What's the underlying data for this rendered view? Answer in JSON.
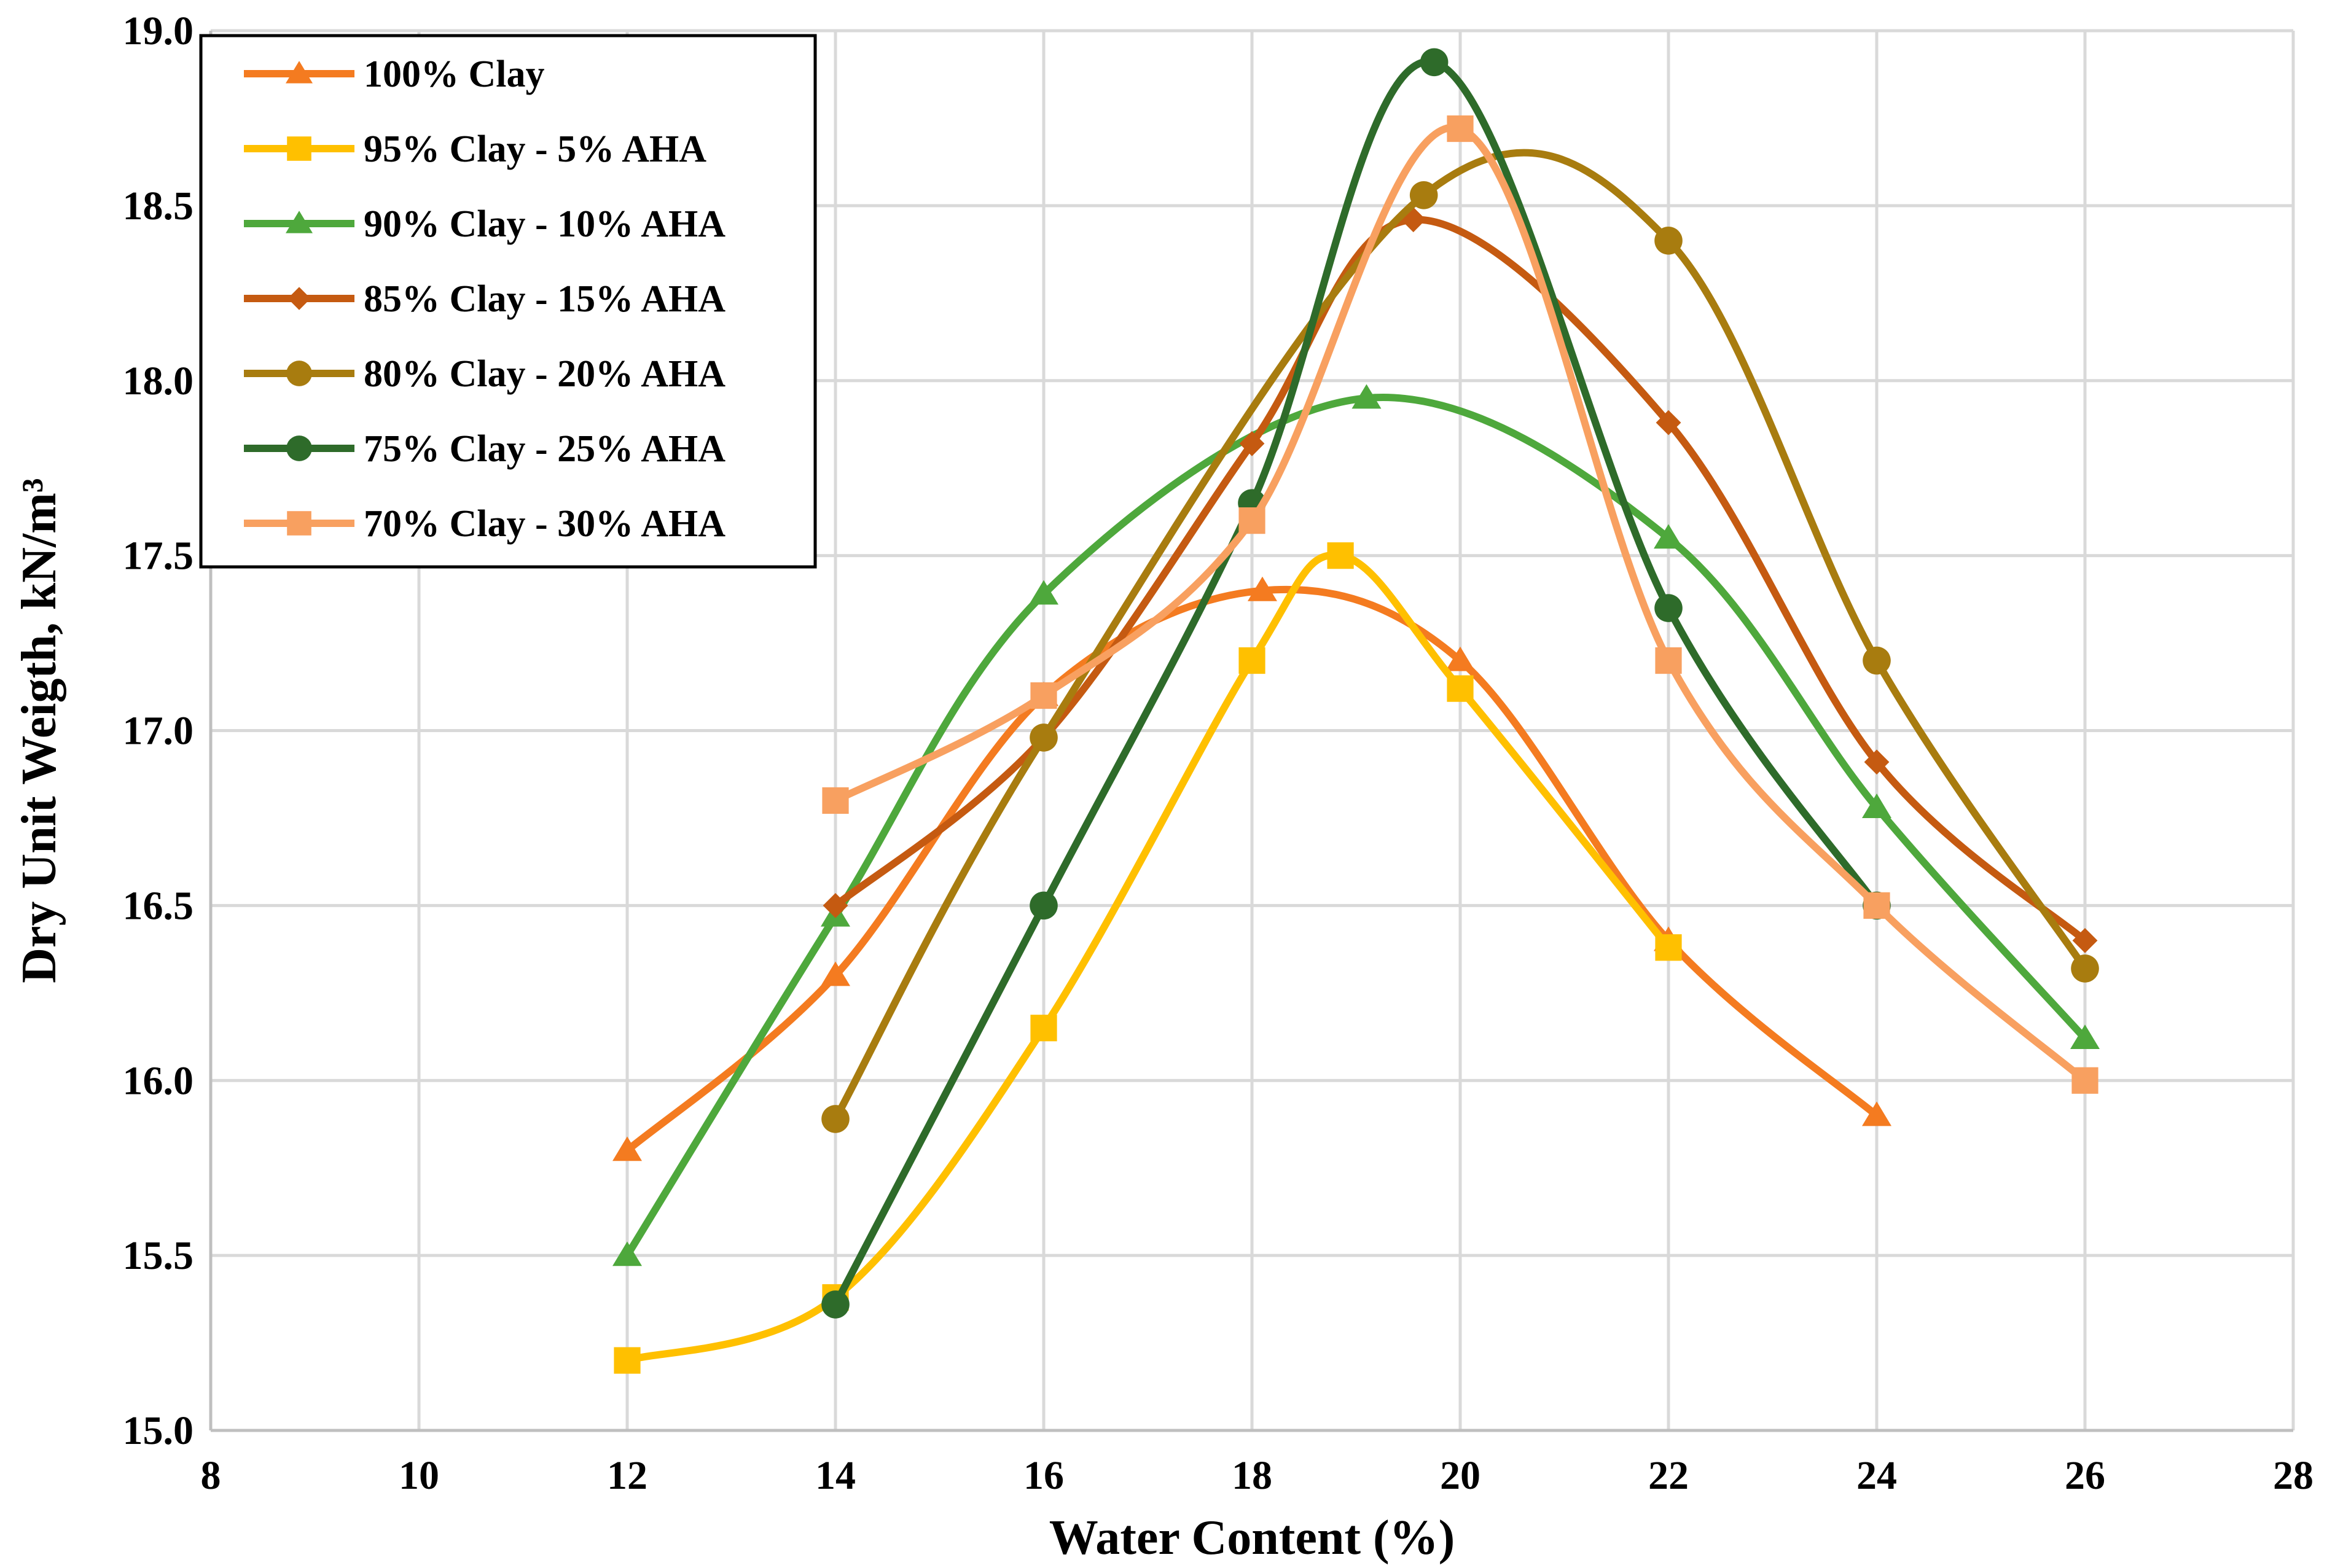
{
  "chart_data": {
    "type": "line",
    "smooth": true,
    "xlabel": "Water Content (%)",
    "ylabel": "Dry Unit Weigth, kN/m³",
    "xlim": [
      8,
      28
    ],
    "ylim": [
      15.0,
      19.0
    ],
    "xticks": [
      "8",
      "10",
      "12",
      "14",
      "16",
      "18",
      "20",
      "22",
      "24",
      "26",
      "28"
    ],
    "yticks": [
      "15.0",
      "15.5",
      "16.0",
      "16.5",
      "17.0",
      "17.5",
      "18.0",
      "18.5",
      "19.0"
    ],
    "grid": true,
    "legend_position": "top-left",
    "series": [
      {
        "name": "100% Clay",
        "color": "#F47B20",
        "marker": "triangle",
        "points": [
          [
            12,
            15.8
          ],
          [
            14,
            16.3
          ],
          [
            16,
            17.1
          ],
          [
            18.1,
            17.4
          ],
          [
            20,
            17.2
          ],
          [
            22,
            16.4
          ],
          [
            24,
            15.9
          ]
        ]
      },
      {
        "name": "95% Clay - 5% AHA",
        "color": "#FFC000",
        "marker": "square",
        "points": [
          [
            12,
            15.2
          ],
          [
            14,
            15.38
          ],
          [
            16,
            16.15
          ],
          [
            18,
            17.2
          ],
          [
            18.85,
            17.5
          ],
          [
            20,
            17.12
          ],
          [
            22,
            16.38
          ]
        ]
      },
      {
        "name": "90% Clay - 10% AHA",
        "color": "#4EA83C",
        "marker": "triangle",
        "points": [
          [
            12,
            15.5
          ],
          [
            14,
            16.47
          ],
          [
            16,
            17.39
          ],
          [
            19.1,
            17.95
          ],
          [
            22,
            17.55
          ],
          [
            24,
            16.78
          ],
          [
            26,
            16.12
          ]
        ]
      },
      {
        "name": "85% Clay - 15% AHA",
        "color": "#C55A11",
        "marker": "diamond",
        "points": [
          [
            14,
            16.5
          ],
          [
            16,
            16.98
          ],
          [
            18,
            17.82
          ],
          [
            19.55,
            18.46
          ],
          [
            22,
            17.88
          ],
          [
            24,
            16.91
          ],
          [
            26,
            16.4
          ]
        ]
      },
      {
        "name": "80% Clay - 20% AHA",
        "color": "#A87C0F",
        "marker": "circle",
        "points": [
          [
            14,
            15.89
          ],
          [
            16,
            16.98
          ],
          [
            19.65,
            18.53
          ],
          [
            22,
            18.4
          ],
          [
            24,
            17.2
          ],
          [
            26,
            16.32
          ]
        ]
      },
      {
        "name": "75% Clay - 25% AHA",
        "color": "#2E6B2A",
        "marker": "circle",
        "points": [
          [
            14,
            15.36
          ],
          [
            16,
            16.5
          ],
          [
            18,
            17.65
          ],
          [
            19.75,
            18.91
          ],
          [
            22,
            17.35
          ],
          [
            24,
            16.5
          ]
        ]
      },
      {
        "name": "70% Clay - 30% AHA",
        "color": "#F8A060",
        "marker": "square",
        "points": [
          [
            14,
            16.8
          ],
          [
            16,
            17.1
          ],
          [
            18,
            17.6
          ],
          [
            20,
            18.72
          ],
          [
            22,
            17.2
          ],
          [
            24,
            16.5
          ],
          [
            26,
            16.0
          ]
        ]
      }
    ]
  }
}
